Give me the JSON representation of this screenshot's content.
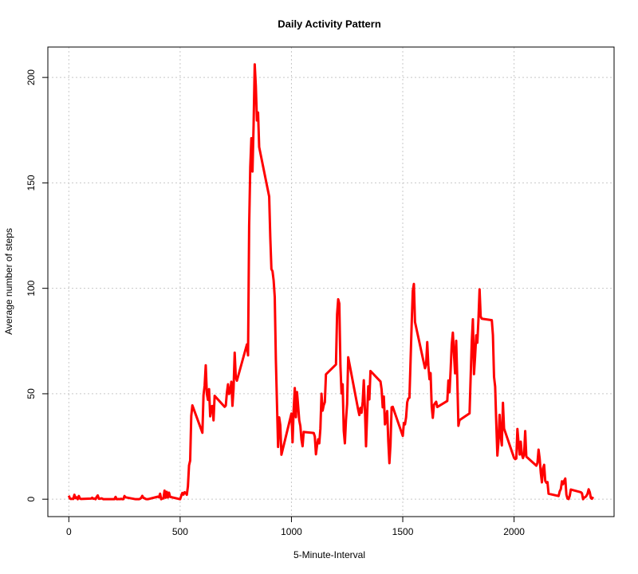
{
  "chart_data": {
    "type": "line",
    "title": "Daily Activity Pattern",
    "x_label": "5-Minute-Interval",
    "y_label": "Average number of steps",
    "x": [
      0,
      5,
      10,
      15,
      20,
      25,
      30,
      35,
      40,
      45,
      50,
      55,
      100,
      105,
      110,
      115,
      120,
      125,
      130,
      135,
      140,
      145,
      150,
      155,
      200,
      205,
      210,
      215,
      220,
      225,
      230,
      235,
      240,
      245,
      250,
      255,
      300,
      305,
      310,
      315,
      320,
      325,
      330,
      335,
      340,
      345,
      350,
      355,
      400,
      405,
      410,
      415,
      420,
      425,
      430,
      435,
      440,
      445,
      450,
      455,
      500,
      505,
      510,
      515,
      520,
      525,
      530,
      535,
      540,
      545,
      550,
      555,
      600,
      605,
      610,
      615,
      620,
      625,
      630,
      635,
      640,
      645,
      650,
      655,
      700,
      705,
      710,
      715,
      720,
      725,
      730,
      735,
      740,
      745,
      750,
      755,
      800,
      805,
      810,
      815,
      820,
      825,
      830,
      835,
      840,
      845,
      850,
      855,
      900,
      905,
      910,
      915,
      920,
      925,
      930,
      935,
      940,
      945,
      950,
      955,
      1000,
      1005,
      1010,
      1015,
      1020,
      1025,
      1030,
      1035,
      1040,
      1045,
      1050,
      1055,
      1100,
      1105,
      1110,
      1115,
      1120,
      1125,
      1130,
      1135,
      1140,
      1145,
      1150,
      1155,
      1200,
      1205,
      1210,
      1215,
      1220,
      1225,
      1230,
      1235,
      1240,
      1245,
      1250,
      1255,
      1300,
      1305,
      1310,
      1315,
      1320,
      1325,
      1330,
      1335,
      1340,
      1345,
      1350,
      1355,
      1400,
      1405,
      1410,
      1415,
      1420,
      1425,
      1430,
      1435,
      1440,
      1445,
      1450,
      1455,
      1500,
      1505,
      1510,
      1515,
      1520,
      1525,
      1530,
      1535,
      1540,
      1545,
      1550,
      1555,
      1600,
      1605,
      1610,
      1615,
      1620,
      1625,
      1630,
      1635,
      1640,
      1645,
      1650,
      1655,
      1700,
      1705,
      1710,
      1715,
      1720,
      1725,
      1730,
      1735,
      1740,
      1745,
      1750,
      1755,
      1800,
      1805,
      1810,
      1815,
      1820,
      1825,
      1830,
      1835,
      1840,
      1845,
      1850,
      1855,
      1900,
      1905,
      1910,
      1915,
      1920,
      1925,
      1930,
      1935,
      1940,
      1945,
      1950,
      1955,
      2000,
      2005,
      2010,
      2015,
      2020,
      2025,
      2030,
      2035,
      2040,
      2045,
      2050,
      2055,
      2100,
      2105,
      2110,
      2115,
      2120,
      2125,
      2130,
      2135,
      2140,
      2145,
      2150,
      2155,
      2200,
      2205,
      2210,
      2215,
      2220,
      2225,
      2230,
      2235,
      2240,
      2245,
      2250,
      2255,
      2300,
      2305,
      2310,
      2315,
      2320,
      2325,
      2330,
      2335,
      2340,
      2345,
      2350,
      2355
    ],
    "series": [
      {
        "name": "steps",
        "color": "#ff0000",
        "values": [
          1.7,
          0.3,
          0.1,
          0.2,
          0.1,
          2.1,
          0.5,
          0.9,
          0,
          1.5,
          0.3,
          0.1,
          0.3,
          0.7,
          0.2,
          0.3,
          0,
          1.1,
          1.8,
          0.2,
          0.2,
          0.4,
          0.3,
          0,
          0,
          0,
          1.1,
          0,
          0,
          0.1,
          0,
          0.2,
          0,
          0,
          1.5,
          0.9,
          0,
          0,
          0,
          0,
          0.2,
          0.6,
          1.6,
          0.6,
          0.5,
          0.1,
          0,
          0,
          1.2,
          0.9,
          2.6,
          0,
          0.3,
          0.4,
          4.1,
          0.7,
          3.5,
          0.8,
          3.1,
          1.1,
          0,
          1.6,
          3.0,
          2.2,
          3.3,
          3.0,
          2.1,
          6.1,
          16.0,
          18.3,
          39.5,
          44.5,
          31.5,
          49.3,
          53.8,
          63.5,
          50.0,
          47.1,
          52.2,
          39.3,
          44.0,
          44.2,
          37.4,
          49.0,
          43.8,
          44.4,
          50.5,
          54.5,
          49.9,
          51.0,
          55.7,
          44.3,
          52.3,
          69.5,
          57.8,
          56.2,
          73.4,
          68.2,
          129.4,
          157.5,
          171.2,
          155.4,
          177.3,
          206.2,
          195.9,
          179.6,
          183.4,
          167.0,
          143.5,
          124.0,
          109.1,
          108.1,
          103.7,
          95.9,
          66.2,
          45.2,
          24.8,
          38.8,
          35.0,
          21.1,
          40.6,
          27.0,
          42.4,
          52.7,
          38.9,
          50.8,
          44.3,
          37.4,
          34.7,
          28.3,
          25.1,
          31.9,
          31.4,
          29.7,
          21.3,
          25.5,
          28.4,
          26.5,
          33.4,
          50.0,
          42.0,
          44.6,
          46.0,
          59.2,
          63.9,
          87.7,
          94.8,
          92.8,
          63.4,
          50.2,
          54.5,
          32.4,
          26.5,
          37.7,
          45.1,
          67.3,
          42.3,
          39.9,
          43.3,
          41.0,
          46.2,
          56.4,
          42.8,
          25.1,
          40.0,
          53.5,
          47.3,
          60.8,
          55.8,
          52.0,
          43.6,
          48.7,
          35.5,
          37.5,
          41.8,
          27.5,
          17.1,
          26.1,
          43.6,
          43.8,
          30.0,
          36.1,
          35.5,
          38.8,
          46.0,
          47.8,
          48.1,
          65.3,
          82.9,
          98.7,
          102.1,
          84.0,
          62.1,
          64.1,
          74.5,
          63.2,
          56.9,
          59.8,
          43.9,
          38.6,
          44.7,
          45.5,
          46.2,
          43.7,
          46.6,
          56.3,
          50.7,
          61.2,
          73.4,
          79.0,
          68.9,
          59.7,
          75.1,
          56.5,
          34.8,
          37.5,
          40.7,
          58.0,
          74.7,
          85.3,
          59.3,
          67.8,
          77.7,
          74.2,
          85.3,
          99.5,
          86.6,
          85.6,
          84.9,
          77.8,
          58.0,
          53.4,
          36.3,
          20.7,
          27.4,
          40.0,
          30.2,
          25.5,
          45.7,
          33.5,
          19.6,
          19.0,
          19.3,
          33.3,
          26.8,
          21.2,
          27.3,
          21.3,
          19.5,
          21.3,
          32.3,
          20.2,
          15.9,
          17.2,
          23.5,
          19.2,
          12.5,
          8.0,
          14.7,
          16.3,
          8.7,
          7.8,
          8.1,
          2.6,
          1.5,
          3.7,
          4.8,
          8.5,
          7.1,
          8.7,
          9.8,
          2.2,
          0.3,
          0.1,
          1.6,
          4.6,
          3.3,
          2.8,
          0,
          0.8,
          1.0,
          1.6,
          2.6,
          4.7,
          3.3,
          0.6,
          0.2,
          1.1
        ]
      }
    ],
    "xlim": [
      -94.2,
      2449.2
    ],
    "xticks": [
      0,
      500,
      1000,
      1500,
      2000
    ],
    "ylim": [
      -8.25,
      214.42
    ],
    "yticks": [
      0,
      50,
      100,
      150,
      200
    ],
    "grid": true
  }
}
